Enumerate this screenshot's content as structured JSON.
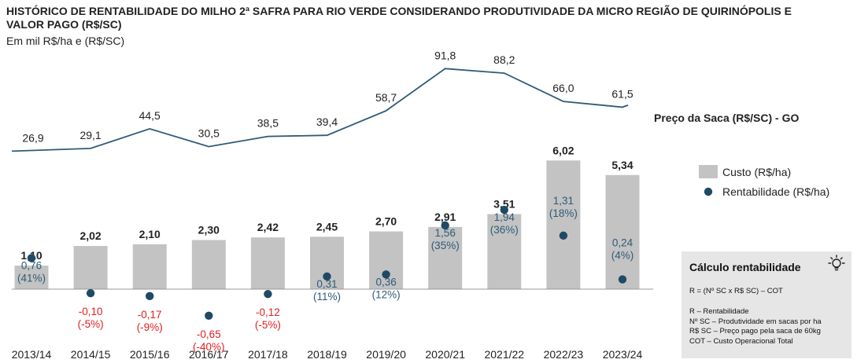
{
  "title": "HISTÓRICO DE RENTABILIDADE DO MILHO 2ª SAFRA PARA RIO VERDE CONSIDERANDO PRODUTIVIDADE DA MICRO REGIÃO DE QUIRINÓPOLIS E VALOR PAGO (R$/SC)",
  "subtitle": "Em mil R$/ha e (R$/SC)",
  "colors": {
    "bar": "#c3c3c3",
    "line": "#2e5a78",
    "dot": "#1f4a65",
    "positive_label": "#2e5a78",
    "negative_label": "#e0201f",
    "text": "#222222"
  },
  "chart_data": {
    "type": "bar",
    "categories": [
      "2013/14",
      "2014/15",
      "2015/16",
      "2016/17",
      "2017/18",
      "2018/19",
      "2019/20",
      "2020/21",
      "2021/22",
      "2022/23",
      "2023/24"
    ],
    "series": [
      {
        "name": "Custo (R$/ha)",
        "type": "bar",
        "values": [
          1.1,
          2.02,
          2.1,
          2.3,
          2.42,
          2.45,
          2.7,
          2.91,
          3.51,
          6.02,
          5.34
        ],
        "labels": [
          "1,10",
          "2,02",
          "2,10",
          "2,30",
          "2,42",
          "2,45",
          "2,70",
          "2,91",
          "3,51",
          "6,02",
          "5,34"
        ]
      },
      {
        "name": "Rentabilidade (R$/ha)",
        "type": "scatter",
        "values": [
          0.76,
          -0.1,
          -0.17,
          -0.65,
          -0.12,
          0.31,
          0.36,
          1.56,
          1.94,
          1.31,
          0.24
        ],
        "labels": [
          "0,76",
          "-0,10",
          "-0,17",
          "-0,65",
          "-0,12",
          "0,31",
          "0,36",
          "1,56",
          "1,94",
          "1,31",
          "0,24"
        ],
        "pct_labels": [
          "(41%)",
          "(-5%)",
          "(-9%)",
          "(-40%)",
          "(-5%)",
          "(11%)",
          "(12%)",
          "(35%)",
          "(36%)",
          "(18%)",
          "(4%)"
        ]
      },
      {
        "name": "Preço da Saca (R$/SC) - GO",
        "type": "line",
        "values": [
          26.9,
          29.1,
          44.5,
          30.5,
          38.5,
          39.4,
          58.7,
          91.8,
          88.2,
          66.0,
          61.5
        ],
        "labels": [
          "26,9",
          "29,1",
          "44,5",
          "30,5",
          "38,5",
          "39,4",
          "58,7",
          "91,8",
          "88,2",
          "66,0",
          "61,5"
        ]
      }
    ],
    "legend": [
      "Custo (R$/ha)",
      "Rentabilidade (R$/ha)"
    ],
    "legend_placement": "right",
    "grid": false
  },
  "calc_box": {
    "title": "Cálculo rentabilidade",
    "formula": "R = (Nº SC x R$ SC) – COT",
    "defs": [
      "R – Rentabilidade",
      "Nº SC – Produtividade em sacas por ha",
      "R$ SC – Preço pago pela saca de 60kg",
      "COT – Custo Operacional Total"
    ],
    "icon": "lightbulb-icon"
  }
}
